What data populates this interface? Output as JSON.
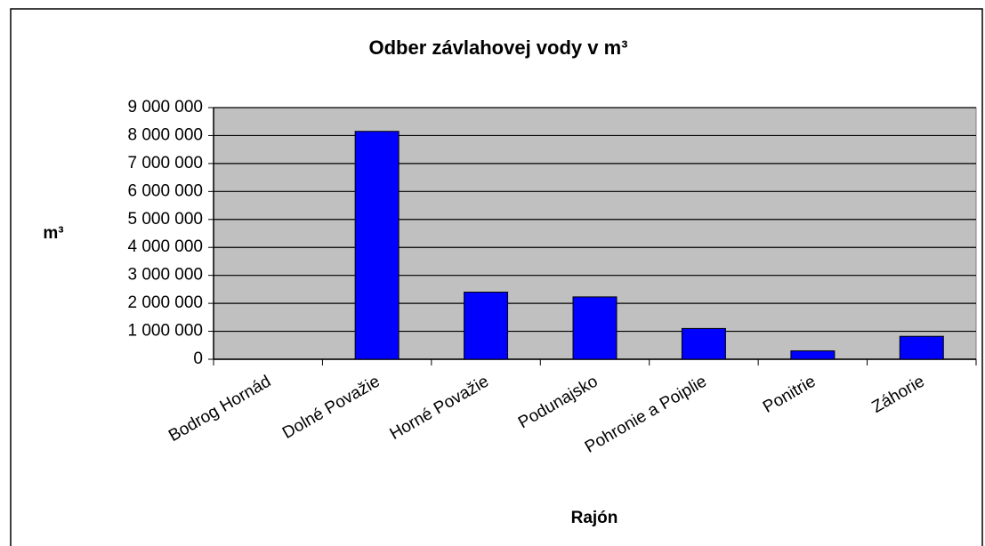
{
  "chart_data": {
    "type": "bar",
    "title": "Odber závlahovej vody v m³",
    "y_label": "m³",
    "x_label": "Rajón",
    "categories": [
      "Bodrog Hornád",
      "Dolné Považie",
      "Horné Považie",
      "Podunajsko",
      "Pohronie a Poiplie",
      "Ponitrie",
      "Záhorie"
    ],
    "values": [
      0,
      8150000,
      2400000,
      2230000,
      1100000,
      300000,
      820000
    ],
    "color": "#0000ff",
    "ylim": [
      0,
      9000000
    ],
    "yticks": [
      0,
      {
        "value": 1000000,
        "label": "1 000 000"
      },
      {
        "value": 2000000,
        "label": "2 000 000"
      },
      {
        "value": 3000000,
        "label": "3 000 000"
      },
      {
        "value": 4000000,
        "label": "4 000 000"
      },
      {
        "value": 5000000,
        "label": "5 000 000"
      },
      {
        "value": 6000000,
        "label": "6 000 000"
      },
      {
        "value": 7000000,
        "label": "7 000 000"
      },
      {
        "value": 8000000,
        "label": "8 000 000"
      },
      {
        "value": 9000000,
        "label": "9 000 000"
      }
    ],
    "grid": true
  }
}
